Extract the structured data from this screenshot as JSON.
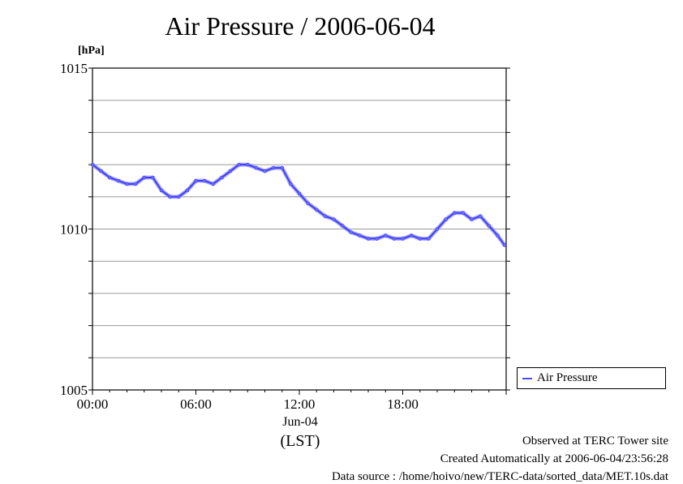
{
  "chart_data": {
    "type": "line",
    "title": "Air Pressure / 2006-06-04",
    "ylabel": "[hPa]",
    "ylim": [
      1005,
      1015
    ],
    "y_ticks": [
      "1015",
      "1010",
      "1005"
    ],
    "xlim": [
      "00:00",
      "24:00"
    ],
    "x_ticks": [
      "00:00",
      "06:00",
      "12:00",
      "18:00"
    ],
    "x_date_label": "Jun-04",
    "x_zone_label": "(LST)",
    "legend": "bottom-right outside",
    "grid": true,
    "series": [
      {
        "name": "Air Pressure",
        "color": "#3a3aff",
        "x_hours": [
          0,
          0.5,
          1,
          1.5,
          2,
          2.5,
          3,
          3.5,
          4,
          4.5,
          5,
          5.5,
          6,
          6.5,
          7,
          7.5,
          8,
          8.5,
          9,
          9.5,
          10,
          10.5,
          11,
          11.5,
          12,
          12.5,
          13,
          13.5,
          14,
          14.5,
          15,
          15.5,
          16,
          16.5,
          17,
          17.5,
          18,
          18.5,
          19,
          19.5,
          20,
          20.5,
          21,
          21.5,
          22,
          22.5,
          23,
          23.5,
          23.9
        ],
        "values": [
          1012.0,
          1011.8,
          1011.6,
          1011.5,
          1011.4,
          1011.4,
          1011.6,
          1011.6,
          1011.2,
          1011.0,
          1011.0,
          1011.2,
          1011.5,
          1011.5,
          1011.4,
          1011.6,
          1011.8,
          1012.0,
          1012.0,
          1011.9,
          1011.8,
          1011.9,
          1011.9,
          1011.4,
          1011.1,
          1010.8,
          1010.6,
          1010.4,
          1010.3,
          1010.1,
          1009.9,
          1009.8,
          1009.7,
          1009.7,
          1009.8,
          1009.7,
          1009.7,
          1009.8,
          1009.7,
          1009.7,
          1010.0,
          1010.3,
          1010.5,
          1010.5,
          1010.3,
          1010.4,
          1010.1,
          1009.8,
          1009.5
        ]
      }
    ]
  },
  "footer": {
    "line1": "Observed at TERC Tower site",
    "line2": "Created Automatically at 2006-06-04/23:56:28",
    "line3": "Data source : /home/hoivo/new/TERC-data/sorted_data/MET.10s.dat"
  }
}
